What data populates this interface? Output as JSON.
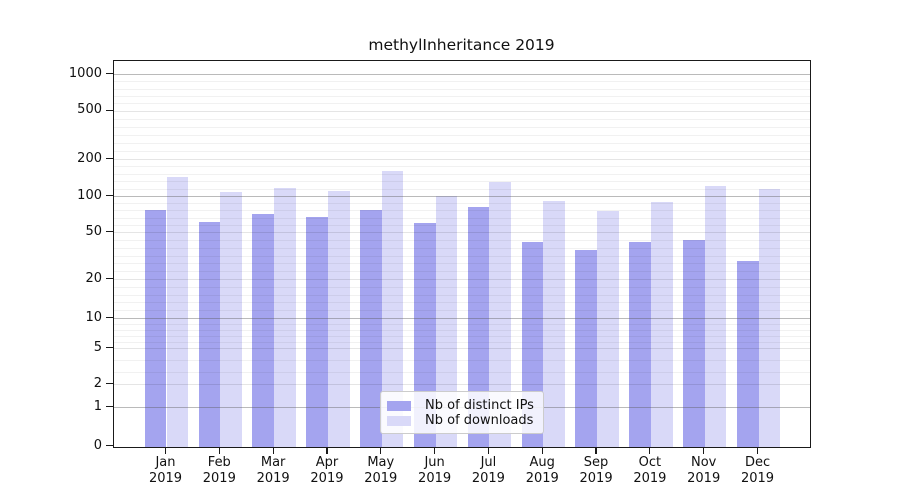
{
  "title": "methylInheritance 2019",
  "legend": {
    "items": [
      {
        "label": "Nb of distinct IPs",
        "color": "#a4a4ef"
      },
      {
        "label": "Nb of downloads",
        "color": "#d9d9f8"
      }
    ],
    "position": "lower center"
  },
  "chart_data": {
    "type": "bar",
    "title": "methylInheritance 2019",
    "categories": [
      "Jan",
      "Feb",
      "Mar",
      "Apr",
      "May",
      "Jun",
      "Jul",
      "Aug",
      "Sep",
      "Oct",
      "Nov",
      "Dec"
    ],
    "year_label": "2019",
    "series": [
      {
        "name": "Nb of distinct IPs",
        "color": "#a4a4ef",
        "values": [
          81,
          64,
          76,
          71,
          81,
          63,
          86,
          44,
          39,
          44,
          45,
          32
        ]
      },
      {
        "name": "Nb of downloads",
        "color": "#d9d9f8",
        "values": [
          154,
          111,
          122,
          116,
          170,
          101,
          140,
          94,
          80,
          92,
          128,
          119
        ]
      }
    ],
    "xlabel": "",
    "ylabel": "",
    "y_ticks": [
      0,
      1,
      2,
      5,
      10,
      20,
      50,
      100,
      200,
      500,
      1000
    ],
    "y_major_gridlines": [
      1,
      10,
      100,
      1000
    ],
    "y_labeled_gridlines": [
      2,
      5,
      20,
      50,
      200,
      500
    ],
    "y_minor_gridlines": [
      3,
      4,
      6,
      7,
      8,
      9,
      12,
      14,
      16,
      18,
      25,
      30,
      35,
      40,
      45,
      60,
      70,
      80,
      90,
      120,
      140,
      160,
      180,
      250,
      300,
      350,
      400,
      450,
      600,
      700,
      800,
      900
    ],
    "ylim": [
      0,
      1300
    ],
    "yscale": "log-like (ticks 0,1,2,5,10,20,50,100,200,500,1000)",
    "grid": true,
    "legend_position": "lower center"
  }
}
